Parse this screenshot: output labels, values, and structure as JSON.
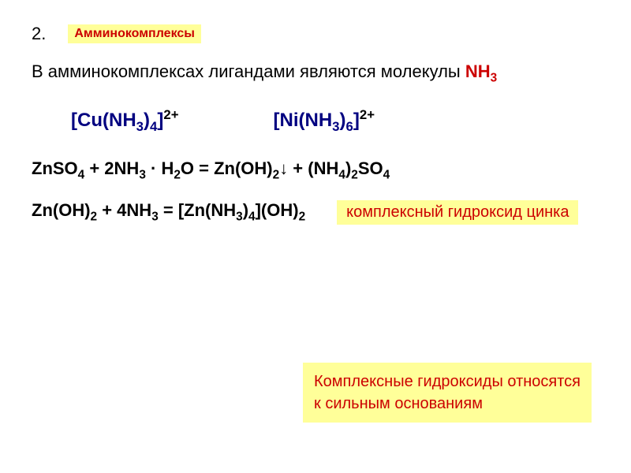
{
  "header": {
    "number": "2.",
    "title": "Амминокомплексы"
  },
  "intro": {
    "prefix": "В амминокомплексах лигандами являются молекулы ",
    "formula": "NH",
    "formula_sub": "3"
  },
  "formulas": {
    "f1": {
      "open": "[",
      "el1": "Cu",
      "paren_open": "(",
      "nh": "NH",
      "sub3": "3",
      "paren_close": ")",
      "sub4": "4",
      "close": "]",
      "sup": "2+"
    },
    "f2": {
      "open": "[",
      "el1": "Ni",
      "paren_open": "(",
      "nh": "NH",
      "sub3": "3",
      "paren_close": ")",
      "sub6": "6",
      "close": "]",
      "sup": "2+"
    }
  },
  "eq1": {
    "p1": "ZnSO",
    "s1": "4",
    "p2": " + 2NH",
    "s2": "3",
    "p3": " · H",
    "s3": "2",
    "p4": "O = Zn(OH)",
    "s4": "2",
    "p5": "↓  + (NH",
    "s5": "4",
    "p6": ")",
    "s6": "2",
    "p7": "SO",
    "s7": "4"
  },
  "eq2": {
    "p1": "Zn(OH)",
    "s1": "2",
    "p2": " + 4NH",
    "s2": "3",
    "p3": " = [Zn(NH",
    "s3": "3",
    "p4": ")",
    "s4": "4",
    "p5": "](OH)",
    "s5": "2"
  },
  "label1": "комплексный гидроксид цинка",
  "label2_line1": "Комплексные гидроксиды относятся",
  "label2_line2": "к сильным основаниям",
  "colors": {
    "background": "#ffffff",
    "text": "#000000",
    "red": "#cc0000",
    "navy": "#000080",
    "highlight": "#ffff99"
  },
  "fonts": {
    "body_size": 22,
    "formula_size": 24,
    "label_size": 20
  }
}
